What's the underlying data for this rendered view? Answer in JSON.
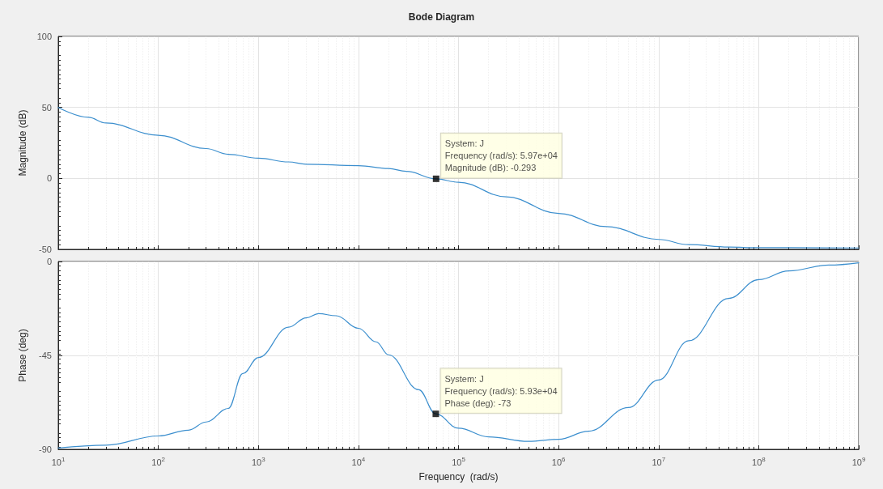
{
  "chart_data": [
    {
      "type": "line",
      "title": "Bode Diagram",
      "ylabel": "Magnitude (dB)",
      "log": "x",
      "grid": true,
      "tick_labels": "y",
      "marker": "none",
      "line_style": "solid",
      "xlim": [
        10,
        1000000000
      ],
      "xticks": [
        {
          "value": 10,
          "label": null
        },
        {
          "value": 100,
          "label": null
        },
        {
          "value": 1000,
          "label": null
        },
        {
          "value": 10000,
          "label": null
        },
        {
          "value": 100000,
          "label": null
        },
        {
          "value": 1000000,
          "label": null
        },
        {
          "value": 10000000,
          "label": null
        },
        {
          "value": 100000000,
          "label": null
        },
        {
          "value": 1000000000,
          "label": null
        }
      ],
      "ylim": [
        -50,
        100
      ],
      "yticks": [
        -50,
        0,
        50,
        100
      ],
      "series": [
        {
          "color": "#3c8fce",
          "x": [
            10,
            20,
            30,
            100,
            300,
            500,
            1000,
            2000,
            3000,
            10000,
            20000,
            30000,
            59700,
            100000,
            300000,
            1000000,
            3000000,
            10000000,
            20000000,
            50000000,
            100000000,
            1000000000
          ],
          "values": [
            50,
            43,
            39,
            30.4,
            21,
            17,
            14.2,
            11.6,
            10,
            9,
            7,
            5,
            -0.293,
            -2.7,
            -13,
            -24.7,
            -34,
            -43,
            -46.7,
            -48.4,
            -48.8,
            -49
          ]
        }
      ],
      "annotations": [
        {
          "text": "System: J\nFrequency (rad/s): 5.97e+04\nMagnitude (dB): -0.293",
          "x": 59700,
          "y": -0.293
        }
      ]
    },
    {
      "type": "line",
      "xlabel": "Frequency  (rad/s)",
      "ylabel": "Phase (deg)",
      "log": "x",
      "grid": true,
      "marker": "none",
      "line_style": "solid",
      "xlim": [
        10,
        1000000000
      ],
      "xticks": [
        {
          "value": 10,
          "label": "10$^{1}$"
        },
        {
          "value": 100,
          "label": "10$^{2}$"
        },
        {
          "value": 1000,
          "label": "10$^{3}$"
        },
        {
          "value": 10000,
          "label": "10$^{4}$"
        },
        {
          "value": 100000,
          "label": "10$^{5}$"
        },
        {
          "value": 1000000,
          "label": "10$^{6}$"
        },
        {
          "value": 10000000,
          "label": "10$^{7}$"
        },
        {
          "value": 100000000,
          "label": "10$^{8}$"
        },
        {
          "value": 1000000000,
          "label": "10$^{9}$"
        }
      ],
      "ylim": [
        -90,
        0
      ],
      "yticks": [
        -90,
        -45,
        0
      ],
      "series": [
        {
          "color": "#3c8fce",
          "x": [
            10,
            30,
            100,
            200,
            300,
            500,
            700,
            1000,
            2000,
            3000,
            4000,
            6000,
            10000,
            15000,
            20000,
            40000,
            59300,
            100000,
            200000,
            500000,
            1000000,
            2000000,
            5000000,
            10000000,
            20000000,
            50000000,
            100000000,
            200000000,
            500000000,
            1000000000
          ],
          "values": [
            -89.4,
            -88,
            -83.6,
            -80.8,
            -76.9,
            -70.4,
            -53.7,
            -46,
            -31.5,
            -27,
            -25,
            -26,
            -32,
            -38.5,
            -44.7,
            -61.4,
            -73,
            -79.9,
            -84,
            -86.2,
            -85.2,
            -81.3,
            -70,
            -56.8,
            -38,
            -17.7,
            -8.7,
            -4.5,
            -1.7,
            -0.6
          ]
        }
      ],
      "annotations": [
        {
          "text": "System: J\nFrequency (rad/s): 5.93e+04\nPhase (deg): -73",
          "x": 59300,
          "y": -73
        }
      ]
    }
  ]
}
